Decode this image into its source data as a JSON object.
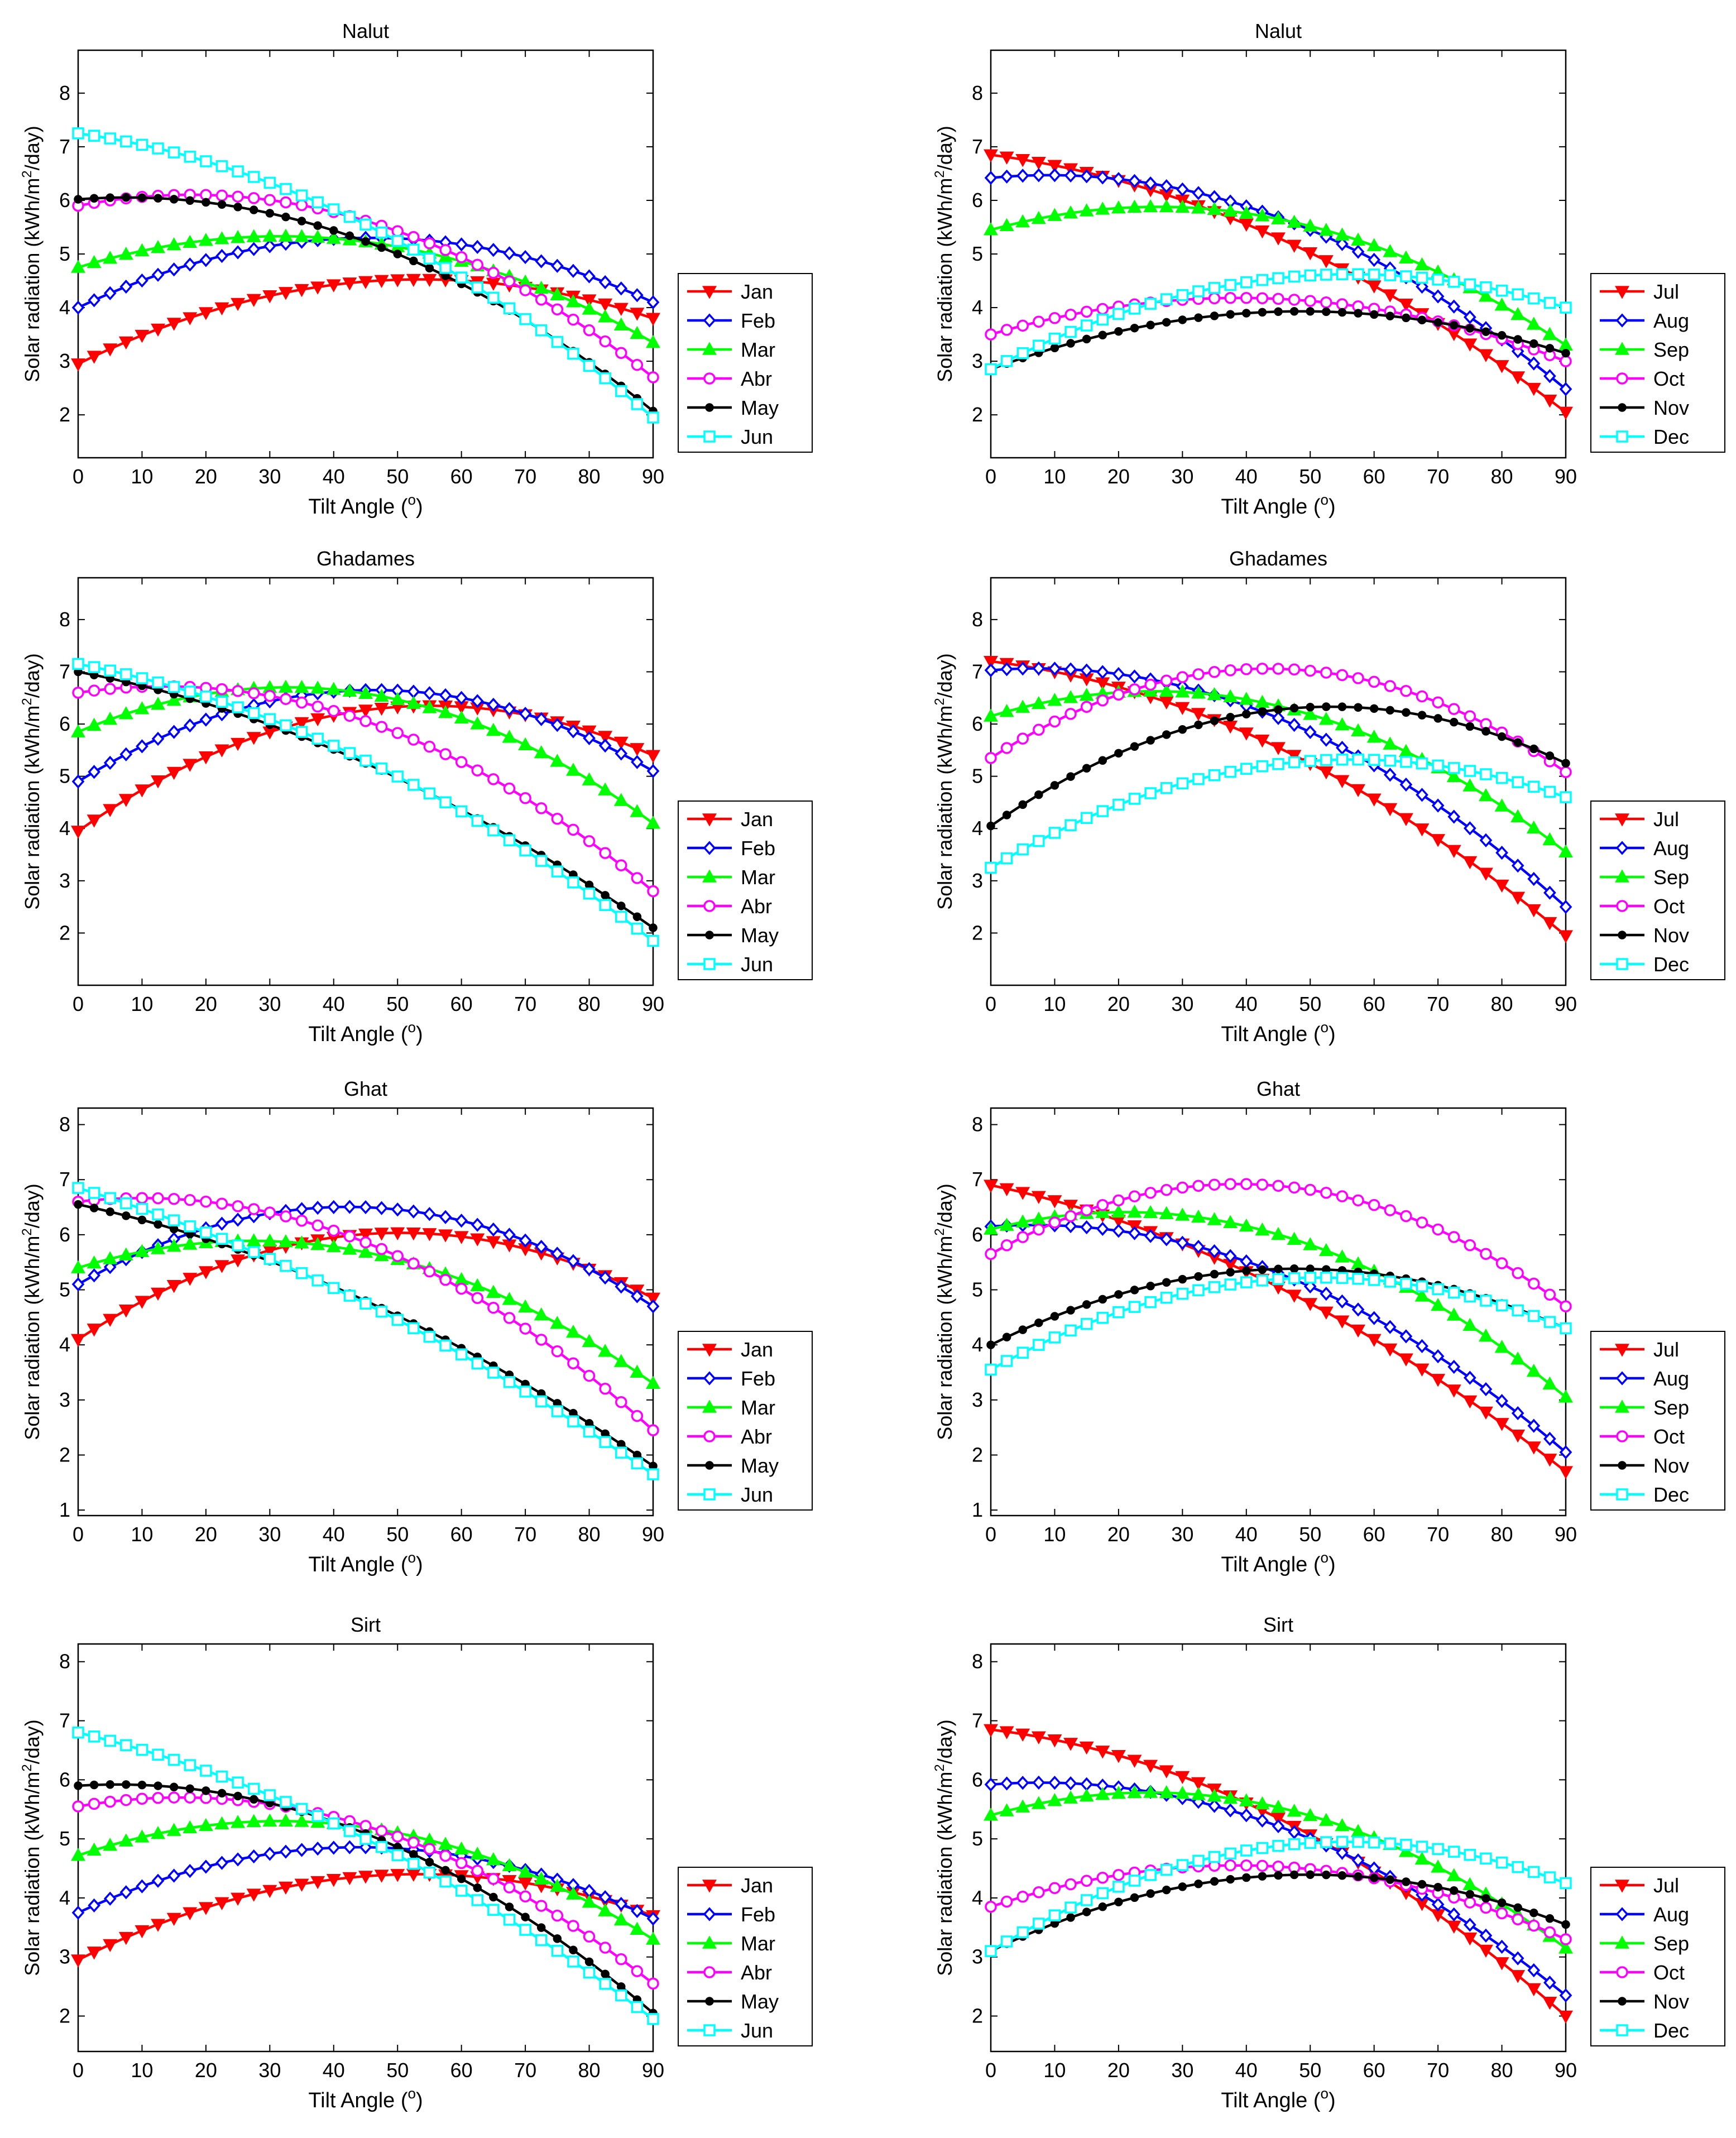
{
  "colors": {
    "Jan": "#ff0000",
    "Feb": "#0000ff",
    "Mar": "#00ff00",
    "Abr": "#ff00ff",
    "May": "#000000",
    "Jun": "#00ffff",
    "Jul": "#ff0000",
    "Aug": "#0000ff",
    "Sep": "#00ff00",
    "Oct": "#ff00ff",
    "Nov": "#000000",
    "Dec": "#00ffff"
  },
  "markers": {
    "Jan": "triangle-down",
    "Feb": "diamond",
    "Mar": "triangle-up",
    "Abr": "circle",
    "May": "dot",
    "Jun": "square",
    "Jul": "triangle-down",
    "Aug": "diamond",
    "Sep": "triangle-up",
    "Oct": "circle",
    "Nov": "dot",
    "Dec": "square"
  },
  "chart_data": [
    {
      "type": "line",
      "title": "Nalut",
      "xlabel": "Tilt Angle (",
      "xlabel_sup": "o",
      "xlabel_tail": ")",
      "ylabel": "Solar radiation (kWh/m",
      "ylabel_sup": "2",
      "ylabel_tail": "/day)",
      "xlim": [
        0,
        90
      ],
      "ylim": [
        1.2,
        8.8
      ],
      "xticks": [
        "0",
        "10",
        "20",
        "30",
        "40",
        "50",
        "60",
        "70",
        "80",
        "90"
      ],
      "yticks": [
        "2",
        "3",
        "4",
        "5",
        "6",
        "7",
        "8"
      ],
      "series": [
        {
          "name": "Jan",
          "anchors": [
            [
              0,
              2.95
            ],
            [
              50,
              4.52
            ],
            [
              90,
              3.8
            ]
          ]
        },
        {
          "name": "Feb",
          "anchors": [
            [
              0,
              4.0
            ],
            [
              40,
              5.28
            ],
            [
              90,
              4.1
            ]
          ]
        },
        {
          "name": "Mar",
          "anchors": [
            [
              0,
              4.75
            ],
            [
              30,
              5.33
            ],
            [
              90,
              3.35
            ]
          ]
        },
        {
          "name": "Abr",
          "anchors": [
            [
              0,
              5.9
            ],
            [
              15,
              6.1
            ],
            [
              90,
              2.7
            ]
          ]
        },
        {
          "name": "May",
          "anchors": [
            [
              0,
              6.02
            ],
            [
              5,
              6.05
            ],
            [
              90,
              2.07
            ]
          ]
        },
        {
          "name": "Jun",
          "anchors": [
            [
              0,
              7.25
            ],
            [
              45,
              5.55
            ],
            [
              90,
              1.95
            ]
          ]
        }
      ]
    },
    {
      "type": "line",
      "title": "Nalut",
      "xlabel": "Tilt Angle (",
      "xlabel_sup": "o",
      "xlabel_tail": ")",
      "ylabel": "Solar radiation (kWh/m",
      "ylabel_sup": "2",
      "ylabel_tail": "/day)",
      "xlim": [
        0,
        90
      ],
      "ylim": [
        1.2,
        8.8
      ],
      "xticks": [
        "0",
        "10",
        "20",
        "30",
        "40",
        "50",
        "60",
        "70",
        "80",
        "90"
      ],
      "yticks": [
        "2",
        "3",
        "4",
        "5",
        "6",
        "7",
        "8"
      ],
      "series": [
        {
          "name": "Jul",
          "anchors": [
            [
              0,
              6.85
            ],
            [
              45,
              5.3
            ],
            [
              90,
              2.05
            ]
          ]
        },
        {
          "name": "Aug",
          "anchors": [
            [
              0,
              6.42
            ],
            [
              10,
              6.47
            ],
            [
              90,
              2.48
            ]
          ]
        },
        {
          "name": "Sep",
          "anchors": [
            [
              0,
              5.45
            ],
            [
              25,
              5.88
            ],
            [
              90,
              3.3
            ]
          ]
        },
        {
          "name": "Oct",
          "anchors": [
            [
              0,
              3.5
            ],
            [
              40,
              4.18
            ],
            [
              90,
              3.0
            ]
          ]
        },
        {
          "name": "Nov",
          "anchors": [
            [
              0,
              2.85
            ],
            [
              50,
              3.93
            ],
            [
              90,
              3.15
            ]
          ]
        },
        {
          "name": "Dec",
          "anchors": [
            [
              0,
              2.85
            ],
            [
              50,
              4.6
            ],
            [
              90,
              4.0
            ]
          ]
        }
      ]
    },
    {
      "type": "line",
      "title": "Ghadames",
      "xlabel": "Tilt Angle (",
      "xlabel_sup": "o",
      "xlabel_tail": ")",
      "ylabel": "Solar radiation (kWh/m",
      "ylabel_sup": "2",
      "ylabel_tail": "/day)",
      "xlim": [
        0,
        90
      ],
      "ylim": [
        1.0,
        8.8
      ],
      "xticks": [
        "0",
        "10",
        "20",
        "30",
        "40",
        "50",
        "60",
        "70",
        "80",
        "90"
      ],
      "yticks": [
        "2",
        "3",
        "4",
        "5",
        "6",
        "7",
        "8"
      ],
      "series": [
        {
          "name": "Jan",
          "anchors": [
            [
              0,
              3.95
            ],
            [
              55,
              6.35
            ],
            [
              90,
              5.4
            ]
          ]
        },
        {
          "name": "Feb",
          "anchors": [
            [
              0,
              4.9
            ],
            [
              45,
              6.65
            ],
            [
              90,
              5.1
            ]
          ]
        },
        {
          "name": "Mar",
          "anchors": [
            [
              0,
              5.85
            ],
            [
              35,
              6.7
            ],
            [
              90,
              4.1
            ]
          ]
        },
        {
          "name": "Abr",
          "anchors": [
            [
              0,
              6.6
            ],
            [
              15,
              6.72
            ],
            [
              90,
              2.8
            ]
          ]
        },
        {
          "name": "May",
          "anchors": [
            [
              0,
              7.0
            ],
            [
              45,
              5.25
            ],
            [
              90,
              2.1
            ]
          ]
        },
        {
          "name": "Jun",
          "anchors": [
            [
              0,
              7.15
            ],
            [
              45,
              5.3
            ],
            [
              90,
              1.85
            ]
          ]
        }
      ]
    },
    {
      "type": "line",
      "title": "Ghadames",
      "xlabel": "Tilt Angle (",
      "xlabel_sup": "o",
      "xlabel_tail": ")",
      "ylabel": "Solar radiation (kWh/m",
      "ylabel_sup": "2",
      "ylabel_tail": "/day)",
      "xlim": [
        0,
        90
      ],
      "ylim": [
        1.0,
        8.8
      ],
      "xticks": [
        "0",
        "10",
        "20",
        "30",
        "40",
        "50",
        "60",
        "70",
        "80",
        "90"
      ],
      "yticks": [
        "2",
        "3",
        "4",
        "5",
        "6",
        "7",
        "8"
      ],
      "series": [
        {
          "name": "Jul",
          "anchors": [
            [
              0,
              7.2
            ],
            [
              45,
              5.55
            ],
            [
              90,
              1.95
            ]
          ]
        },
        {
          "name": "Aug",
          "anchors": [
            [
              0,
              7.03
            ],
            [
              10,
              7.06
            ],
            [
              90,
              2.5
            ]
          ]
        },
        {
          "name": "Sep",
          "anchors": [
            [
              0,
              6.15
            ],
            [
              22,
              6.62
            ],
            [
              90,
              3.55
            ]
          ]
        },
        {
          "name": "Oct",
          "anchors": [
            [
              0,
              5.35
            ],
            [
              40,
              7.05
            ],
            [
              90,
              5.08
            ]
          ]
        },
        {
          "name": "Nov",
          "anchors": [
            [
              0,
              4.05
            ],
            [
              55,
              6.33
            ],
            [
              90,
              5.25
            ]
          ]
        },
        {
          "name": "Dec",
          "anchors": [
            [
              0,
              3.25
            ],
            [
              55,
              5.32
            ],
            [
              90,
              4.6
            ]
          ]
        }
      ]
    },
    {
      "type": "line",
      "title": "Ghat",
      "xlabel": "Tilt Angle (",
      "xlabel_sup": "o",
      "xlabel_tail": ")",
      "ylabel": "Solar radiation (kWh/m",
      "ylabel_sup": "2",
      "ylabel_tail": "/day)",
      "xlim": [
        0,
        90
      ],
      "ylim": [
        0.9,
        8.3
      ],
      "xticks": [
        "0",
        "10",
        "20",
        "30",
        "40",
        "50",
        "60",
        "70",
        "80",
        "90"
      ],
      "yticks": [
        "1",
        "2",
        "3",
        "4",
        "5",
        "6",
        "7",
        "8"
      ],
      "series": [
        {
          "name": "Jan",
          "anchors": [
            [
              0,
              4.1
            ],
            [
              55,
              6.02
            ],
            [
              90,
              4.85
            ]
          ]
        },
        {
          "name": "Feb",
          "anchors": [
            [
              0,
              5.1
            ],
            [
              45,
              6.5
            ],
            [
              90,
              4.7
            ]
          ]
        },
        {
          "name": "Mar",
          "anchors": [
            [
              0,
              5.4
            ],
            [
              35,
              5.85
            ],
            [
              90,
              3.3
            ]
          ]
        },
        {
          "name": "Abr",
          "anchors": [
            [
              0,
              6.6
            ],
            [
              15,
              6.65
            ],
            [
              90,
              2.45
            ]
          ]
        },
        {
          "name": "May",
          "anchors": [
            [
              0,
              6.55
            ],
            [
              45,
              4.8
            ],
            [
              90,
              1.8
            ]
          ]
        },
        {
          "name": "Jun",
          "anchors": [
            [
              0,
              6.85
            ],
            [
              45,
              4.75
            ],
            [
              90,
              1.65
            ]
          ]
        }
      ]
    },
    {
      "type": "line",
      "title": "Ghat",
      "xlabel": "Tilt Angle (",
      "xlabel_sup": "o",
      "xlabel_tail": ")",
      "ylabel": "Solar radiation (kWh/m",
      "ylabel_sup": "2",
      "ylabel_tail": "/day)",
      "xlim": [
        0,
        90
      ],
      "ylim": [
        0.9,
        8.3
      ],
      "xticks": [
        "0",
        "10",
        "20",
        "30",
        "40",
        "50",
        "60",
        "70",
        "80",
        "90"
      ],
      "yticks": [
        "1",
        "2",
        "3",
        "4",
        "5",
        "6",
        "7",
        "8"
      ],
      "series": [
        {
          "name": "Jul",
          "anchors": [
            [
              0,
              6.9
            ],
            [
              45,
              5.05
            ],
            [
              90,
              1.7
            ]
          ]
        },
        {
          "name": "Aug",
          "anchors": [
            [
              0,
              6.15
            ],
            [
              10,
              6.17
            ],
            [
              90,
              2.05
            ]
          ]
        },
        {
          "name": "Sep",
          "anchors": [
            [
              0,
              6.1
            ],
            [
              25,
              6.4
            ],
            [
              90,
              3.05
            ]
          ]
        },
        {
          "name": "Oct",
          "anchors": [
            [
              0,
              5.65
            ],
            [
              40,
              6.92
            ],
            [
              90,
              4.7
            ]
          ]
        },
        {
          "name": "Nov",
          "anchors": [
            [
              0,
              4.0
            ],
            [
              50,
              5.38
            ],
            [
              90,
              4.3
            ]
          ]
        },
        {
          "name": "Dec",
          "anchors": [
            [
              0,
              3.55
            ],
            [
              50,
              5.22
            ],
            [
              90,
              4.3
            ]
          ]
        }
      ]
    },
    {
      "type": "line",
      "title": "Sirt",
      "xlabel": "Tilt Angle (",
      "xlabel_sup": "o",
      "xlabel_tail": ")",
      "ylabel": "Solar radiation (kWh/m",
      "ylabel_sup": "2",
      "ylabel_tail": "/day)",
      "xlim": [
        0,
        90
      ],
      "ylim": [
        1.4,
        8.3
      ],
      "xticks": [
        "0",
        "10",
        "20",
        "30",
        "40",
        "50",
        "60",
        "70",
        "80",
        "90"
      ],
      "yticks": [
        "2",
        "3",
        "4",
        "5",
        "6",
        "7",
        "8"
      ],
      "series": [
        {
          "name": "Jan",
          "anchors": [
            [
              0,
              2.95
            ],
            [
              55,
              4.4
            ],
            [
              90,
              3.7
            ]
          ]
        },
        {
          "name": "Feb",
          "anchors": [
            [
              0,
              3.75
            ],
            [
              40,
              4.85
            ],
            [
              90,
              3.65
            ]
          ]
        },
        {
          "name": "Mar",
          "anchors": [
            [
              0,
              4.72
            ],
            [
              30,
              5.3
            ],
            [
              90,
              3.3
            ]
          ]
        },
        {
          "name": "Abr",
          "anchors": [
            [
              0,
              5.55
            ],
            [
              15,
              5.7
            ],
            [
              90,
              2.55
            ]
          ]
        },
        {
          "name": "May",
          "anchors": [
            [
              0,
              5.9
            ],
            [
              5,
              5.92
            ],
            [
              90,
              2.05
            ]
          ]
        },
        {
          "name": "Jun",
          "anchors": [
            [
              0,
              6.8
            ],
            [
              45,
              5.0
            ],
            [
              90,
              1.95
            ]
          ]
        }
      ]
    },
    {
      "type": "line",
      "title": "Sirt",
      "xlabel": "Tilt Angle (",
      "xlabel_sup": "o",
      "xlabel_tail": ")",
      "ylabel": "Solar radiation (kWh/m",
      "ylabel_sup": "2",
      "ylabel_tail": "/day)",
      "xlim": [
        0,
        90
      ],
      "ylim": [
        1.4,
        8.3
      ],
      "xticks": [
        "0",
        "10",
        "20",
        "30",
        "40",
        "50",
        "60",
        "70",
        "80",
        "90"
      ],
      "yticks": [
        "2",
        "3",
        "4",
        "5",
        "6",
        "7",
        "8"
      ],
      "series": [
        {
          "name": "Jul",
          "anchors": [
            [
              0,
              6.85
            ],
            [
              45,
              5.35
            ],
            [
              90,
              2.0
            ]
          ]
        },
        {
          "name": "Aug",
          "anchors": [
            [
              0,
              5.92
            ],
            [
              10,
              5.95
            ],
            [
              90,
              2.35
            ]
          ]
        },
        {
          "name": "Sep",
          "anchors": [
            [
              0,
              5.4
            ],
            [
              22,
              5.78
            ],
            [
              90,
              3.15
            ]
          ]
        },
        {
          "name": "Oct",
          "anchors": [
            [
              0,
              3.85
            ],
            [
              40,
              4.55
            ],
            [
              90,
              3.3
            ]
          ]
        },
        {
          "name": "Nov",
          "anchors": [
            [
              0,
              3.1
            ],
            [
              55,
              4.38
            ],
            [
              90,
              3.55
            ]
          ]
        },
        {
          "name": "Dec",
          "anchors": [
            [
              0,
              3.1
            ],
            [
              55,
              4.95
            ],
            [
              90,
              4.25
            ]
          ]
        }
      ]
    }
  ]
}
